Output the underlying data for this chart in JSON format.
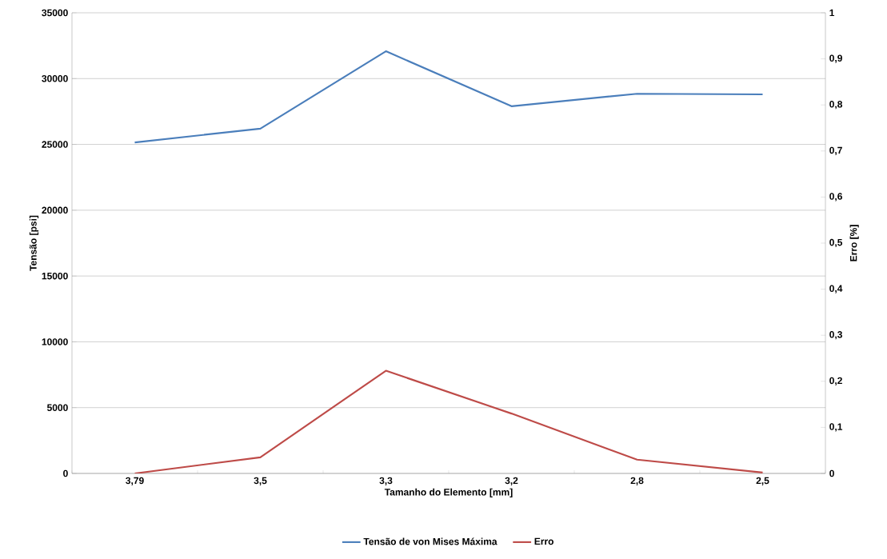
{
  "chart_data": {
    "type": "line",
    "xlabel": "Tamanho do  Elemento [mm]",
    "ylabel": "Tensão [psi]",
    "y2label": "Erro [%]",
    "categories": [
      "3,79",
      "3,5",
      "3,3",
      "3,2",
      "2,8",
      "2,5"
    ],
    "series": [
      {
        "name": "Tensão de von Mises Máxima",
        "color": "#4a7ebb",
        "values": [
          25150,
          26200,
          32080,
          27900,
          28850,
          28800
        ]
      },
      {
        "name": "Erro",
        "color": "#be4b48",
        "axis": "y2",
        "values": [
          0,
          0.035,
          0.223,
          0.13,
          0.03,
          0.002
        ]
      }
    ],
    "ylim": [
      0,
      35000
    ],
    "yticks": [
      0,
      5000,
      10000,
      15000,
      20000,
      25000,
      30000,
      35000
    ],
    "y2lim": [
      0,
      1
    ],
    "y2ticks": [
      {
        "value": 0,
        "label": "0"
      },
      {
        "value": 0.1,
        "label": "0,1"
      },
      {
        "value": 0.2,
        "label": "0,2"
      },
      {
        "value": 0.3,
        "label": "0,3"
      },
      {
        "value": 0.4,
        "label": "0,4"
      },
      {
        "value": 0.5,
        "label": "0,5"
      },
      {
        "value": 0.6,
        "label": "0,6"
      },
      {
        "value": 0.7,
        "label": "0,7"
      },
      {
        "value": 0.8,
        "label": "0,8"
      },
      {
        "value": 0.9,
        "label": "0,9"
      },
      {
        "value": 1,
        "label": "1"
      }
    ],
    "grid": "y",
    "legend": "bottom",
    "marker": "none",
    "line_style": "solid"
  }
}
